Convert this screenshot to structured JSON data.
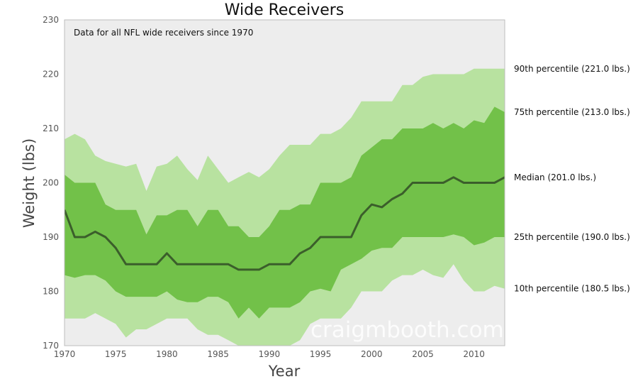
{
  "chart_data": {
    "type": "area",
    "title": "Wide Receivers",
    "xlabel": "Year",
    "ylabel": "Weight (lbs)",
    "annotation": "Data for all NFL wide receivers since 1970",
    "watermark": "craigmbooth.com",
    "xlim": [
      1970,
      2013
    ],
    "ylim": [
      170,
      230
    ],
    "x_ticks": [
      1970,
      1975,
      1980,
      1985,
      1990,
      1995,
      2000,
      2005,
      2010
    ],
    "y_ticks": [
      170,
      180,
      190,
      200,
      210,
      220,
      230
    ],
    "grid": false,
    "colors": {
      "outer_band": "#b8e2a0",
      "inner_band": "#72c149",
      "median_line": "#3b5e2b",
      "background": "#ededed"
    },
    "x": [
      1970,
      1971,
      1972,
      1973,
      1974,
      1975,
      1976,
      1977,
      1978,
      1979,
      1980,
      1981,
      1982,
      1983,
      1984,
      1985,
      1986,
      1987,
      1988,
      1989,
      1990,
      1991,
      1992,
      1993,
      1994,
      1995,
      1996,
      1997,
      1998,
      1999,
      2000,
      2001,
      2002,
      2003,
      2004,
      2005,
      2006,
      2007,
      2008,
      2009,
      2010,
      2011,
      2012,
      2013
    ],
    "series": [
      {
        "name": "90th percentile",
        "values": [
          208,
          209,
          208,
          205,
          204,
          203.5,
          203,
          203.5,
          198.5,
          203,
          203.5,
          205,
          202.5,
          200.5,
          205,
          202.5,
          200,
          201,
          202,
          201,
          202.5,
          205,
          207,
          207,
          207,
          209,
          209,
          210,
          212,
          215,
          215,
          215,
          215,
          218,
          218,
          219.5,
          220,
          220,
          220,
          220,
          221,
          221,
          221,
          221
        ]
      },
      {
        "name": "75th percentile",
        "values": [
          201.5,
          200,
          200,
          200,
          196,
          195,
          195,
          195,
          190.5,
          194,
          194,
          195,
          195,
          192,
          195,
          195,
          192,
          192,
          190,
          190,
          192,
          195,
          195,
          196,
          196,
          200,
          200,
          200,
          201,
          205,
          206.5,
          208,
          208,
          210,
          210,
          210,
          211,
          210,
          211,
          210,
          211.5,
          211,
          214,
          213
        ]
      },
      {
        "name": "Median",
        "values": [
          195,
          190,
          190,
          191,
          190,
          188,
          185,
          185,
          185,
          185,
          187,
          185,
          185,
          185,
          185,
          185,
          185,
          184,
          184,
          184,
          185,
          185,
          185,
          187,
          188,
          190,
          190,
          190,
          190,
          194,
          196,
          195.5,
          197,
          198,
          200,
          200,
          200,
          200,
          201,
          200,
          200,
          200,
          200,
          201
        ]
      },
      {
        "name": "25th percentile",
        "values": [
          183,
          182.5,
          183,
          183,
          182,
          180,
          179,
          179,
          179,
          179,
          180,
          178.5,
          178,
          178,
          179,
          179,
          178,
          175,
          177,
          175,
          177,
          177,
          177,
          178,
          180,
          180.5,
          180,
          184,
          185,
          186,
          187.5,
          188,
          188,
          190,
          190,
          190,
          190,
          190,
          190.5,
          190,
          188.5,
          189,
          190,
          190
        ]
      },
      {
        "name": "10th percentile",
        "values": [
          175,
          175,
          175,
          176,
          175,
          174,
          171.5,
          173,
          173,
          174,
          175,
          175,
          175,
          173,
          172,
          172,
          171,
          170,
          170,
          170,
          170,
          170,
          170,
          171,
          174,
          175,
          175,
          175,
          177,
          180,
          180,
          180,
          182,
          183,
          183,
          184,
          183,
          182.5,
          185,
          182,
          180,
          180,
          181,
          180.5
        ]
      }
    ],
    "labels": {
      "p90": "90th percentile (221.0 lbs.)",
      "p75": "75th percentile (213.0 lbs.)",
      "median": "Median (201.0 lbs.)",
      "p25": "25th percentile (190.0 lbs.)",
      "p10": "10th percentile (180.5 lbs.)"
    }
  }
}
